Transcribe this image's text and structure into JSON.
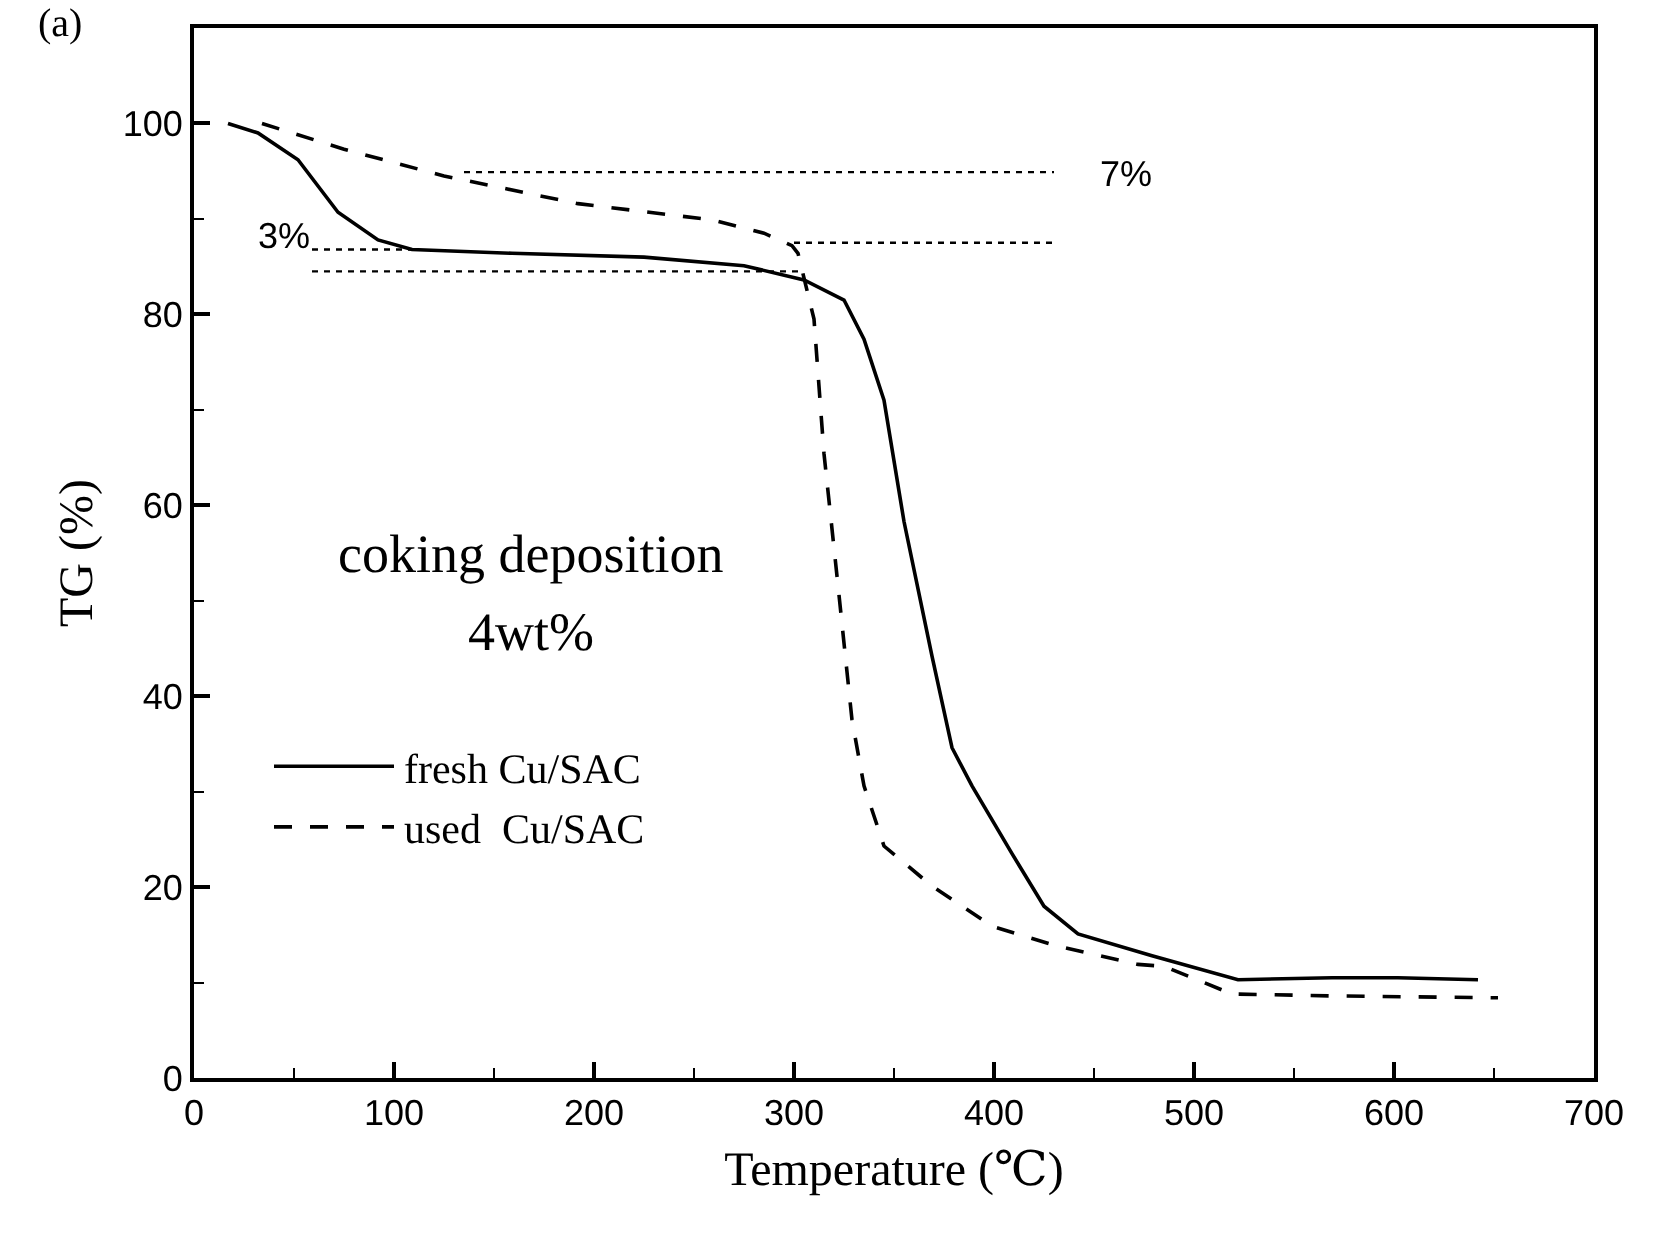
{
  "chart_data": {
    "type": "line",
    "xlabel": "Temperature (℃)",
    "ylabel": "TG (%)",
    "xlim": [
      0,
      700
    ],
    "ylim": [
      0,
      110
    ],
    "xticks": [
      0,
      100,
      200,
      300,
      400,
      500,
      600,
      700
    ],
    "yticks": [
      0,
      20,
      40,
      60,
      80,
      100
    ],
    "grid": false,
    "legend": "bottom left",
    "marker": "none",
    "annotations": [
      "(a)",
      "3%",
      "7%",
      "coking deposition",
      "4wt%"
    ],
    "series": [
      {
        "name": "fresh Cu/SAC",
        "color": "#000000",
        "line_style": "solid",
        "x": [
          17,
          32,
          52,
          72,
          92,
          109,
          159,
          225,
          275,
          305,
          325,
          335,
          345,
          355,
          369,
          379,
          389,
          409,
          425,
          442,
          479,
          522,
          569,
          602,
          642
        ],
        "values": [
          100,
          99,
          96.2,
          90.7,
          87.8,
          86.8,
          86.4,
          86,
          85.1,
          83.6,
          81.5,
          77.4,
          71,
          58.3,
          44.2,
          34.6,
          30.6,
          23.5,
          18,
          15.1,
          12.8,
          10.3,
          10.5,
          10.5,
          10.3
        ]
      },
      {
        "name": "used  Cu/SAC",
        "color": "#000000",
        "line_style": "dashed",
        "x": [
          34,
          75,
          125,
          192,
          259,
          285,
          299,
          302,
          310,
          315,
          322,
          329,
          335,
          345,
          369,
          399,
          432,
          472,
          485,
          519,
          569,
          652
        ],
        "values": [
          100,
          97.3,
          94.5,
          91.6,
          89.9,
          88.5,
          87.2,
          86.4,
          79.5,
          65.4,
          51.6,
          37.5,
          30.6,
          24.3,
          20.1,
          15.9,
          13.8,
          11.9,
          11.7,
          8.8,
          8.6,
          8.4
        ]
      },
      {
        "color": "#000000",
        "line_style": "dotted",
        "x": [
          59,
          113
        ],
        "values": [
          86.8,
          86.8
        ]
      },
      {
        "color": "#000000",
        "line_style": "dotted",
        "x": [
          59,
          303
        ],
        "values": [
          84.5,
          84.5
        ]
      },
      {
        "color": "#000000",
        "line_style": "dotted",
        "x": [
          135,
          430
        ],
        "values": [
          94.9,
          94.9
        ]
      },
      {
        "color": "#000000",
        "line_style": "dotted",
        "x": [
          300,
          430
        ],
        "values": [
          87.5,
          87.5
        ]
      }
    ]
  }
}
